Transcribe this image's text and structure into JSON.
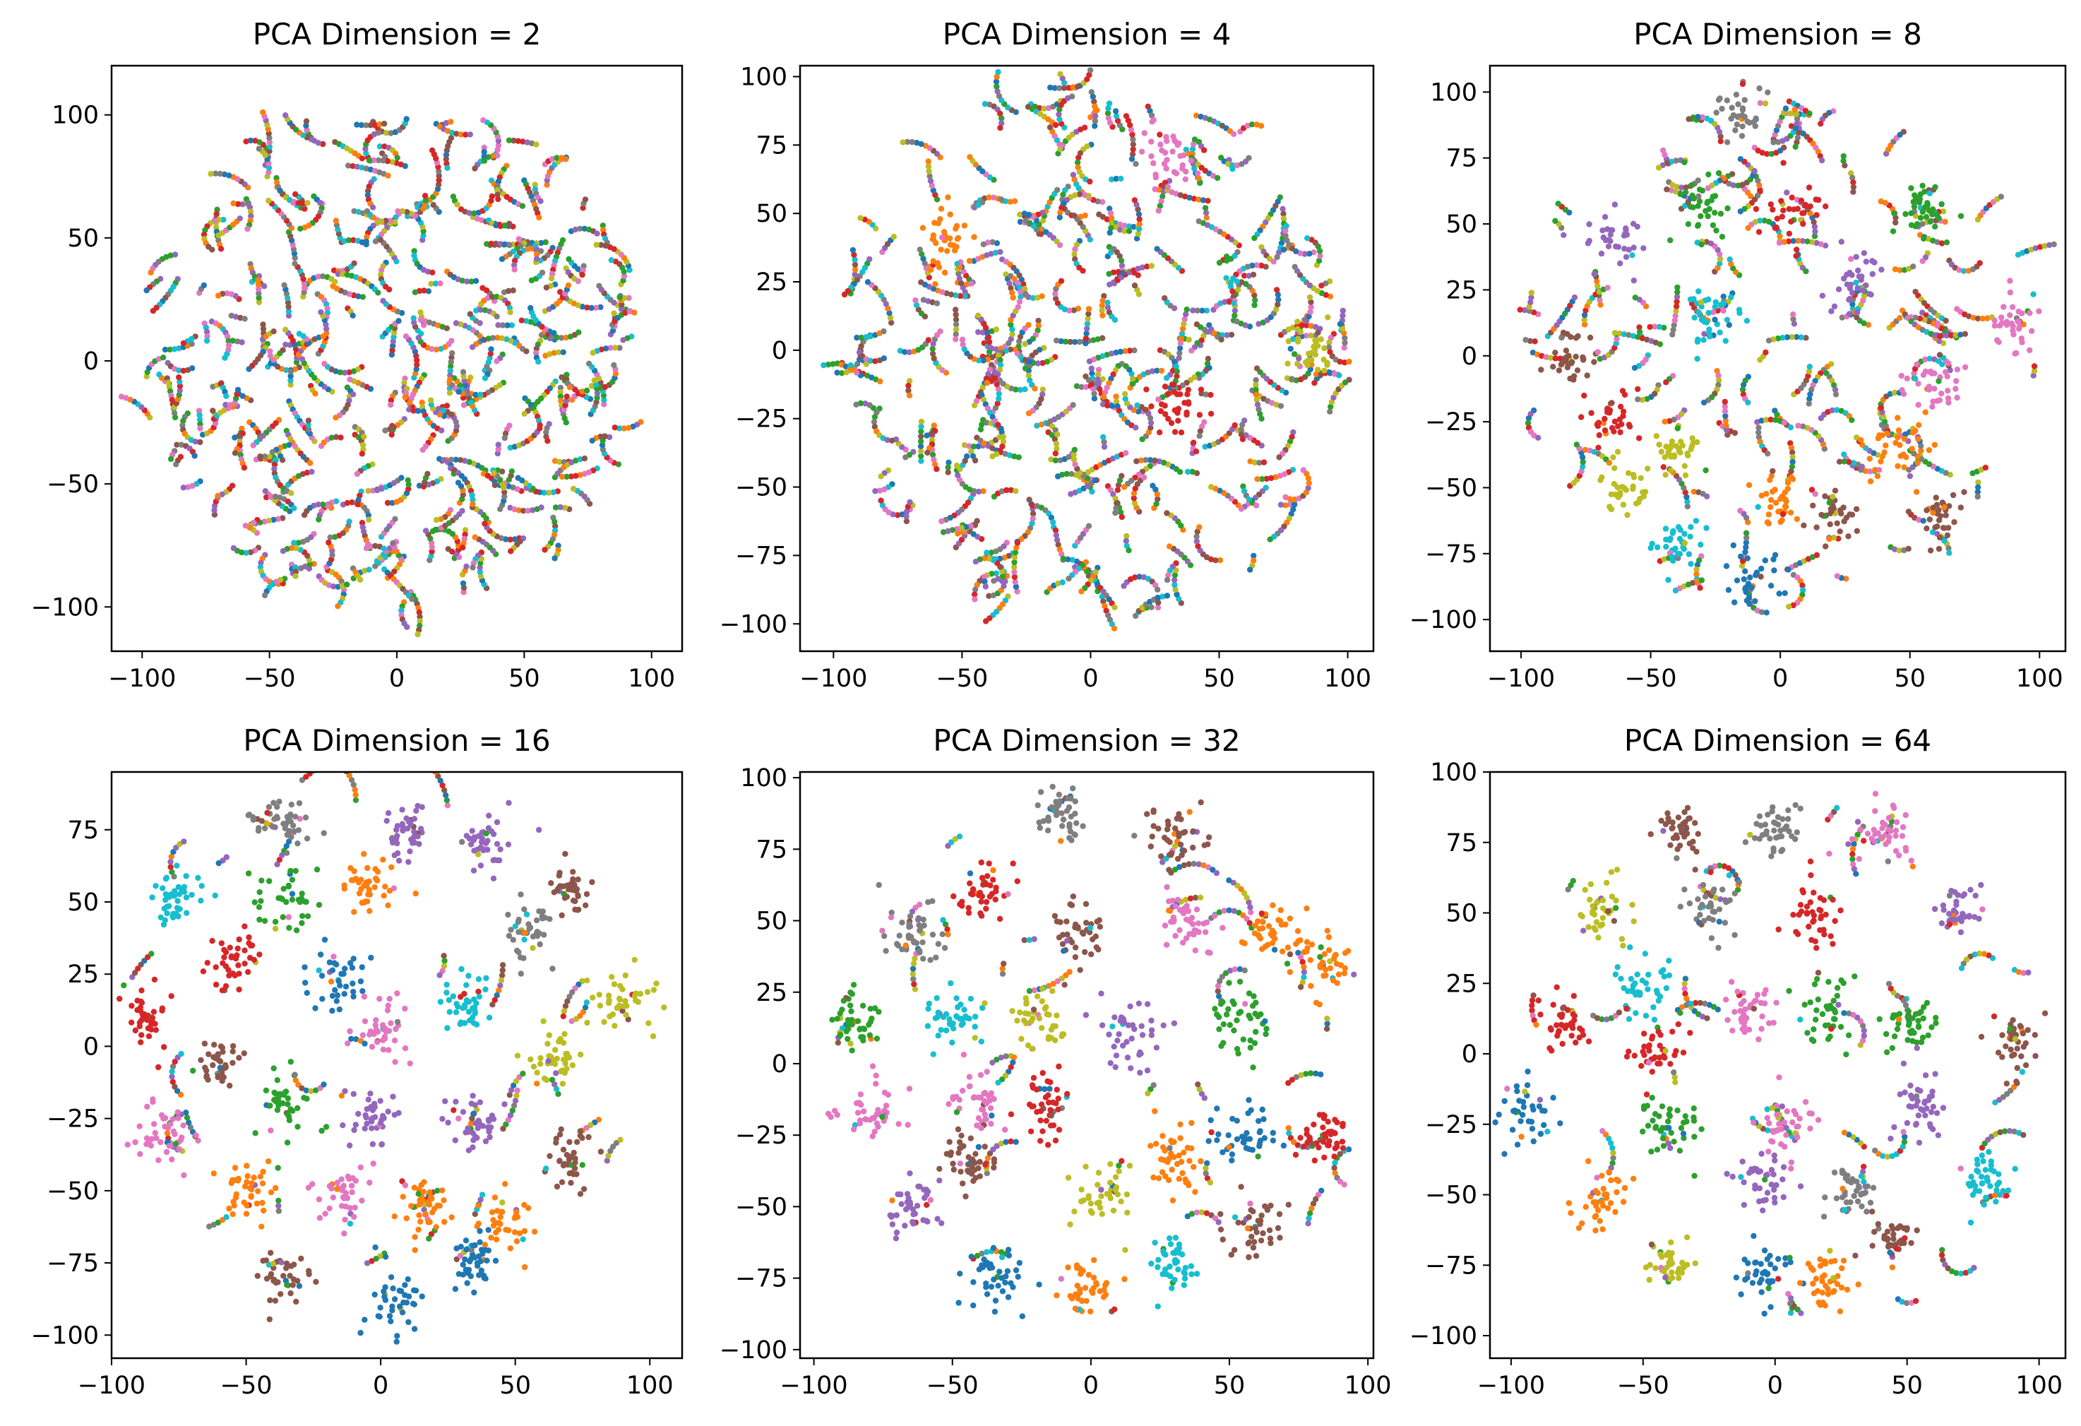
{
  "figure": {
    "description_colors": [
      "#1f77b4",
      "#ff7f0e",
      "#2ca02c",
      "#d62728",
      "#9467bd",
      "#8c564b",
      "#e377c2",
      "#7f7f7f",
      "#bcbd22",
      "#17becf"
    ]
  },
  "chart_data": [
    {
      "type": "scatter",
      "title": "PCA Dimension = 2",
      "xlim": [
        -112,
        112
      ],
      "ylim": [
        -118,
        120
      ],
      "xticks": [
        -100,
        -50,
        0,
        50,
        100
      ],
      "yticks": [
        -100,
        -50,
        0,
        50,
        100
      ],
      "xlabel": "",
      "ylabel": "",
      "clusters": [],
      "points_per_cluster": 0,
      "fragments": 300,
      "seed": 2
    },
    {
      "type": "scatter",
      "title": "PCA Dimension = 4",
      "xlim": [
        -113,
        110
      ],
      "ylim": [
        -110,
        104
      ],
      "xticks": [
        -100,
        -50,
        0,
        50,
        100
      ],
      "yticks": [
        -100,
        -75,
        -50,
        -25,
        0,
        25,
        50,
        75,
        100
      ],
      "xlabel": "",
      "ylabel": "",
      "clusters": [
        {
          "x": 35,
          "y": -20,
          "c": 3,
          "r": 10
        },
        {
          "x": 85,
          "y": 0,
          "c": 8,
          "r": 9
        },
        {
          "x": 30,
          "y": 70,
          "c": 6,
          "r": 10
        },
        {
          "x": -55,
          "y": 40,
          "c": 1,
          "r": 12
        }
      ],
      "points_per_cluster": 35,
      "fragments": 260,
      "seed": 4
    },
    {
      "type": "scatter",
      "title": "PCA Dimension = 8",
      "xlim": [
        -112,
        110
      ],
      "ylim": [
        -112,
        110
      ],
      "xticks": [
        -100,
        -50,
        0,
        50,
        100
      ],
      "yticks": [
        -100,
        -75,
        -50,
        -25,
        0,
        25,
        50,
        75,
        100
      ],
      "xlabel": "",
      "ylabel": "",
      "clusters": [
        {
          "x": -15,
          "y": 92,
          "c": 7,
          "r": 8
        },
        {
          "x": 90,
          "y": 12,
          "c": 6,
          "r": 9
        },
        {
          "x": -80,
          "y": 0,
          "c": 5,
          "r": 9
        },
        {
          "x": -65,
          "y": -25,
          "c": 3,
          "r": 10
        },
        {
          "x": -60,
          "y": -50,
          "c": 8,
          "r": 9
        },
        {
          "x": -40,
          "y": -35,
          "c": 8,
          "r": 8
        },
        {
          "x": -40,
          "y": -72,
          "c": 9,
          "r": 9
        },
        {
          "x": -10,
          "y": -85,
          "c": 0,
          "r": 10
        },
        {
          "x": 0,
          "y": -55,
          "c": 1,
          "r": 9
        },
        {
          "x": 45,
          "y": -35,
          "c": 1,
          "r": 12
        },
        {
          "x": 60,
          "y": -60,
          "c": 5,
          "r": 8
        },
        {
          "x": 20,
          "y": -60,
          "c": 5,
          "r": 10
        },
        {
          "x": -65,
          "y": 45,
          "c": 4,
          "r": 9
        },
        {
          "x": -25,
          "y": 15,
          "c": 9,
          "r": 10
        },
        {
          "x": 5,
          "y": 55,
          "c": 3,
          "r": 12
        },
        {
          "x": -30,
          "y": 55,
          "c": 2,
          "r": 10
        },
        {
          "x": 30,
          "y": 30,
          "c": 4,
          "r": 10
        },
        {
          "x": 60,
          "y": -10,
          "c": 6,
          "r": 9
        },
        {
          "x": 55,
          "y": 55,
          "c": 2,
          "r": 9
        }
      ],
      "points_per_cluster": 35,
      "fragments": 120,
      "seed": 8
    },
    {
      "type": "scatter",
      "title": "PCA Dimension = 16",
      "xlim": [
        -100,
        112
      ],
      "ylim": [
        -108,
        95
      ],
      "xticks": [
        -100,
        -50,
        0,
        50,
        100
      ],
      "yticks": [
        -100,
        -75,
        -50,
        -25,
        0,
        25,
        50,
        75
      ],
      "xlabel": "",
      "ylabel": "",
      "clusters": [
        {
          "x": -35,
          "y": 78,
          "c": 7,
          "r": 9
        },
        {
          "x": 10,
          "y": 75,
          "c": 4,
          "r": 8
        },
        {
          "x": 40,
          "y": 70,
          "c": 4,
          "r": 9
        },
        {
          "x": -75,
          "y": 50,
          "c": 9,
          "r": 9
        },
        {
          "x": 70,
          "y": 55,
          "c": 5,
          "r": 7
        },
        {
          "x": -85,
          "y": 10,
          "c": 3,
          "r": 9
        },
        {
          "x": 90,
          "y": 15,
          "c": 8,
          "r": 10
        },
        {
          "x": -55,
          "y": 30,
          "c": 3,
          "r": 9
        },
        {
          "x": -35,
          "y": 50,
          "c": 2,
          "r": 10
        },
        {
          "x": -5,
          "y": 55,
          "c": 1,
          "r": 10
        },
        {
          "x": 55,
          "y": 40,
          "c": 7,
          "r": 9
        },
        {
          "x": -60,
          "y": -5,
          "c": 5,
          "r": 7
        },
        {
          "x": -35,
          "y": -20,
          "c": 2,
          "r": 10
        },
        {
          "x": 0,
          "y": 5,
          "c": 6,
          "r": 10
        },
        {
          "x": 30,
          "y": 15,
          "c": 9,
          "r": 10
        },
        {
          "x": 65,
          "y": -5,
          "c": 8,
          "r": 9
        },
        {
          "x": -80,
          "y": -30,
          "c": 6,
          "r": 9
        },
        {
          "x": -5,
          "y": -25,
          "c": 4,
          "r": 9
        },
        {
          "x": 35,
          "y": -25,
          "c": 4,
          "r": 9
        },
        {
          "x": 70,
          "y": -40,
          "c": 5,
          "r": 9
        },
        {
          "x": -50,
          "y": -50,
          "c": 1,
          "r": 9
        },
        {
          "x": -15,
          "y": -50,
          "c": 6,
          "r": 9
        },
        {
          "x": 15,
          "y": -55,
          "c": 1,
          "r": 9
        },
        {
          "x": 45,
          "y": -60,
          "c": 1,
          "r": 9
        },
        {
          "x": -35,
          "y": -80,
          "c": 5,
          "r": 9
        },
        {
          "x": 5,
          "y": -88,
          "c": 0,
          "r": 10
        },
        {
          "x": 35,
          "y": -75,
          "c": 0,
          "r": 8
        },
        {
          "x": -15,
          "y": 25,
          "c": 0,
          "r": 9
        }
      ],
      "points_per_cluster": 40,
      "fragments": 30,
      "seed": 16
    },
    {
      "type": "scatter",
      "title": "PCA Dimension = 32",
      "xlim": [
        -105,
        102
      ],
      "ylim": [
        -103,
        102
      ],
      "xticks": [
        -100,
        -50,
        0,
        50,
        100
      ],
      "yticks": [
        -100,
        -75,
        -50,
        -25,
        0,
        25,
        50,
        75,
        100
      ],
      "xlabel": "",
      "ylabel": "",
      "clusters": [
        {
          "x": -10,
          "y": 88,
          "c": 7,
          "r": 8
        },
        {
          "x": 30,
          "y": 80,
          "c": 5,
          "r": 9
        },
        {
          "x": -40,
          "y": 60,
          "c": 3,
          "r": 10
        },
        {
          "x": -65,
          "y": 45,
          "c": 7,
          "r": 9
        },
        {
          "x": -5,
          "y": 45,
          "c": 5,
          "r": 10
        },
        {
          "x": 35,
          "y": 50,
          "c": 6,
          "r": 9
        },
        {
          "x": 65,
          "y": 45,
          "c": 1,
          "r": 9
        },
        {
          "x": 85,
          "y": 35,
          "c": 1,
          "r": 9
        },
        {
          "x": -85,
          "y": 15,
          "c": 2,
          "r": 9
        },
        {
          "x": -50,
          "y": 15,
          "c": 9,
          "r": 10
        },
        {
          "x": -20,
          "y": 15,
          "c": 8,
          "r": 9
        },
        {
          "x": 15,
          "y": 10,
          "c": 4,
          "r": 12
        },
        {
          "x": 55,
          "y": 15,
          "c": 2,
          "r": 11
        },
        {
          "x": -80,
          "y": -15,
          "c": 6,
          "r": 10
        },
        {
          "x": -40,
          "y": -15,
          "c": 6,
          "r": 9
        },
        {
          "x": -15,
          "y": -15,
          "c": 3,
          "r": 10
        },
        {
          "x": 55,
          "y": -25,
          "c": 0,
          "r": 10
        },
        {
          "x": 85,
          "y": -25,
          "c": 3,
          "r": 9
        },
        {
          "x": -65,
          "y": -50,
          "c": 4,
          "r": 10
        },
        {
          "x": -45,
          "y": -35,
          "c": 5,
          "r": 9
        },
        {
          "x": 5,
          "y": -45,
          "c": 8,
          "r": 10
        },
        {
          "x": 30,
          "y": -35,
          "c": 1,
          "r": 10
        },
        {
          "x": 60,
          "y": -55,
          "c": 5,
          "r": 9
        },
        {
          "x": -35,
          "y": -75,
          "c": 0,
          "r": 10
        },
        {
          "x": 0,
          "y": -80,
          "c": 1,
          "r": 10
        },
        {
          "x": 30,
          "y": -70,
          "c": 9,
          "r": 9
        }
      ],
      "points_per_cluster": 42,
      "fragments": 30,
      "seed": 32
    },
    {
      "type": "scatter",
      "title": "PCA Dimension = 64",
      "xlim": [
        -108,
        110
      ],
      "ylim": [
        -108,
        100
      ],
      "xticks": [
        -100,
        -50,
        0,
        50,
        100
      ],
      "yticks": [
        -100,
        -75,
        -50,
        -25,
        0,
        25,
        50,
        75,
        100
      ],
      "xlabel": "",
      "ylabel": "",
      "clusters": [
        {
          "x": -35,
          "y": 80,
          "c": 5,
          "r": 9
        },
        {
          "x": 0,
          "y": 80,
          "c": 7,
          "r": 9
        },
        {
          "x": 40,
          "y": 78,
          "c": 6,
          "r": 10
        },
        {
          "x": -65,
          "y": 50,
          "c": 8,
          "r": 9
        },
        {
          "x": -25,
          "y": 52,
          "c": 7,
          "r": 9
        },
        {
          "x": 15,
          "y": 50,
          "c": 3,
          "r": 10
        },
        {
          "x": 70,
          "y": 50,
          "c": 4,
          "r": 8
        },
        {
          "x": -80,
          "y": 10,
          "c": 3,
          "r": 9
        },
        {
          "x": -50,
          "y": 25,
          "c": 9,
          "r": 10
        },
        {
          "x": -45,
          "y": 0,
          "c": 3,
          "r": 10
        },
        {
          "x": -10,
          "y": 15,
          "c": 6,
          "r": 8
        },
        {
          "x": 20,
          "y": 15,
          "c": 2,
          "r": 11
        },
        {
          "x": 50,
          "y": 10,
          "c": 2,
          "r": 9
        },
        {
          "x": 90,
          "y": 5,
          "c": 5,
          "r": 9
        },
        {
          "x": -95,
          "y": -20,
          "c": 0,
          "r": 10
        },
        {
          "x": -40,
          "y": -25,
          "c": 2,
          "r": 10
        },
        {
          "x": 5,
          "y": -25,
          "c": 6,
          "r": 11
        },
        {
          "x": 55,
          "y": -20,
          "c": 4,
          "r": 9
        },
        {
          "x": -65,
          "y": -50,
          "c": 1,
          "r": 9
        },
        {
          "x": -5,
          "y": -45,
          "c": 4,
          "r": 9
        },
        {
          "x": 30,
          "y": -50,
          "c": 7,
          "r": 9
        },
        {
          "x": 80,
          "y": -45,
          "c": 9,
          "r": 9
        },
        {
          "x": -40,
          "y": -75,
          "c": 8,
          "r": 8
        },
        {
          "x": -5,
          "y": -80,
          "c": 0,
          "r": 10
        },
        {
          "x": 20,
          "y": -80,
          "c": 1,
          "r": 8
        },
        {
          "x": 45,
          "y": -65,
          "c": 5,
          "r": 8
        }
      ],
      "points_per_cluster": 40,
      "fragments": 30,
      "seed": 64
    }
  ]
}
